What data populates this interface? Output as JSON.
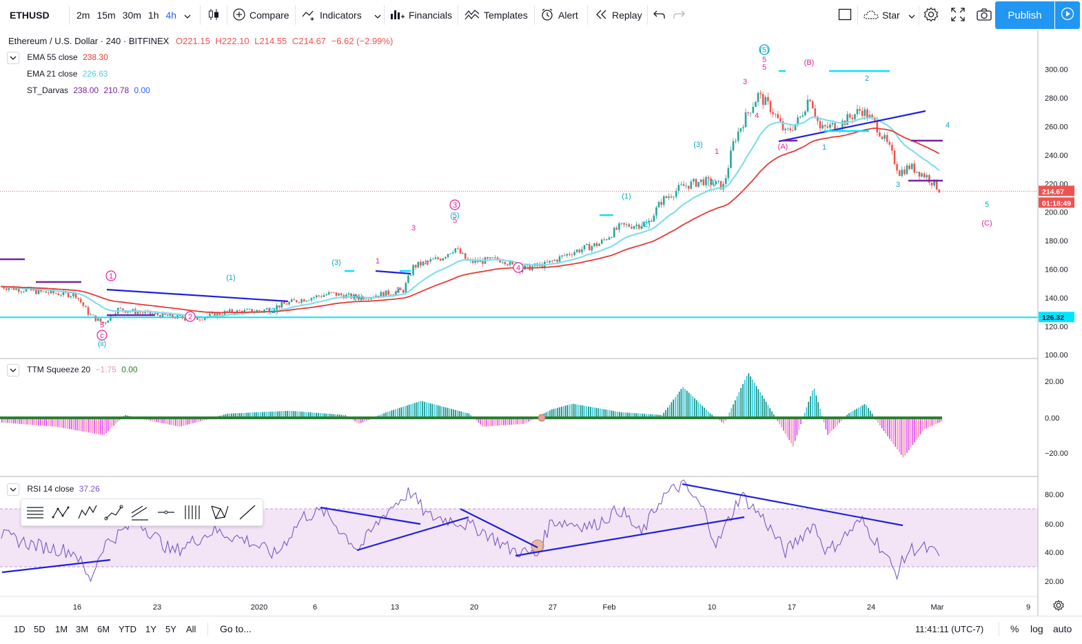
{
  "toolbar": {
    "symbol": "ETHUSD",
    "timeframes": [
      "2m",
      "15m",
      "30m",
      "1h",
      "4h"
    ],
    "active_timeframe": "4h",
    "compare": "Compare",
    "indicators": "Indicators",
    "financials": "Financials",
    "templates": "Templates",
    "alert": "Alert",
    "replay": "Replay",
    "star": "Star",
    "publish": "Publish"
  },
  "main_legend": {
    "title": "Ethereum / U.S. Dollar · 240 · BITFINEX",
    "open": "O221.15",
    "high": "H222.10",
    "low": "L214.55",
    "close": "C214.67",
    "change": "−6.62 (−2.99%)"
  },
  "studies": [
    {
      "name": "EMA 55 close",
      "values": [
        "238.30"
      ],
      "color": "#e53935"
    },
    {
      "name": "EMA 21 close",
      "values": [
        "226.63"
      ],
      "color": "#80deea"
    },
    {
      "name": "ST_Darvas",
      "values": [
        "238.00",
        "210.78",
        "0.00"
      ],
      "color": "#7b1fa2"
    }
  ],
  "ttm": {
    "name": "TTM Squeeze 20",
    "v1": "−1.75",
    "v2": "0.00"
  },
  "rsi": {
    "name": "RSI 14 close",
    "value": "37.26"
  },
  "price_axis": {
    "labels": [
      "300.00",
      "280.00",
      "260.00",
      "240.00",
      "220.00",
      "200.00",
      "180.00",
      "160.00",
      "140.00",
      "120.00",
      "100.00"
    ],
    "last_price": "214.67",
    "countdown": "01:18:49",
    "hline_price": "126.32"
  },
  "ttm_axis": {
    "labels": [
      "20.00",
      "0.00",
      "−20.00"
    ]
  },
  "rsi_axis": {
    "labels": [
      "80.00",
      "60.00",
      "40.00",
      "20.00"
    ]
  },
  "time_axis": {
    "labels": [
      "16",
      "23",
      "2020",
      "6",
      "13",
      "20",
      "27",
      "Feb",
      "10",
      "17",
      "24",
      "Mar",
      "9"
    ]
  },
  "wave_labels": [
    {
      "t": "1",
      "c": "#e91e99"
    },
    {
      "t": "5",
      "c": "#e91e99"
    },
    {
      "t": "c",
      "c": "#e91e99"
    },
    {
      "t": "(ii)",
      "c": "#00acc1"
    },
    {
      "t": "2",
      "c": "#e91e99"
    },
    {
      "t": "(1)",
      "c": "#00acc1"
    },
    {
      "t": "(2)",
      "c": "#00acc1"
    },
    {
      "t": "(3)",
      "c": "#00acc1"
    },
    {
      "t": "(4)",
      "c": "#00acc1"
    },
    {
      "t": "1",
      "c": "#e91e99"
    },
    {
      "t": "2",
      "c": "#e91e99"
    },
    {
      "t": "3",
      "c": "#e91e99"
    },
    {
      "t": "4",
      "c": "#e91e99"
    },
    {
      "t": "3",
      "c": "#e91e99"
    },
    {
      "t": "(5)",
      "c": "#00acc1"
    },
    {
      "t": "5",
      "c": "#e91e99"
    },
    {
      "t": "4",
      "c": "#e91e99"
    },
    {
      "t": "(1)",
      "c": "#00acc1"
    },
    {
      "t": "(2)",
      "c": "#00acc1"
    },
    {
      "t": "(3)",
      "c": "#00acc1"
    },
    {
      "t": "1",
      "c": "#e91e99"
    },
    {
      "t": "(4)",
      "c": "#00acc1"
    },
    {
      "t": "3",
      "c": "#e91e99"
    },
    {
      "t": "4",
      "c": "#e91e99"
    },
    {
      "t": "5",
      "c": "#e91e99"
    },
    {
      "t": "(5)",
      "c": "#00acc1"
    },
    {
      "t": "5",
      "c": "#e91e99"
    },
    {
      "t": "(A)",
      "c": "#e91e99"
    },
    {
      "t": "(B)",
      "c": "#e91e99"
    },
    {
      "t": "1",
      "c": "#00acc1"
    },
    {
      "t": "2",
      "c": "#00acc1"
    },
    {
      "t": "3",
      "c": "#00acc1"
    },
    {
      "t": "4",
      "c": "#00acc1"
    },
    {
      "t": "5",
      "c": "#00acc1"
    },
    {
      "t": "(C)",
      "c": "#e91e99"
    }
  ],
  "bottom": {
    "ranges": [
      "1D",
      "5D",
      "1M",
      "3M",
      "6M",
      "YTD",
      "1Y",
      "5Y",
      "All"
    ],
    "goto": "Go to...",
    "clock": "11:41:11 (UTC-7)",
    "percent": "%",
    "log": "log",
    "auto": "auto"
  },
  "colors": {
    "up": "#26a69a",
    "down": "#ef5350",
    "ema55": "#e53935",
    "ema21": "#80deea",
    "trendline": "#1e1ee0",
    "hline": "#00e5ff",
    "darvas": "#7b1fa2",
    "rsi": "#7e57c2"
  },
  "icons": [
    "candles-icon",
    "compare-plus-icon",
    "indicators-icon",
    "financials-icon",
    "templates-icon",
    "alert-icon",
    "replay-icon",
    "undo-icon",
    "redo-icon",
    "rectangle-icon",
    "cloud-icon",
    "gear-icon",
    "fullscreen-icon",
    "camera-icon",
    "play-icon"
  ]
}
